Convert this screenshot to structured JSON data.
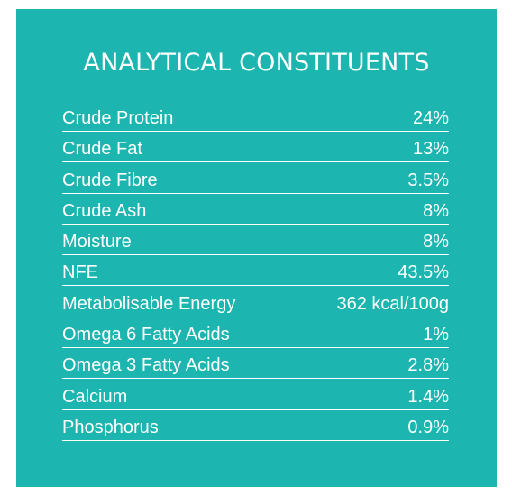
{
  "title": "ANALYTICAL CONSTITUENTS",
  "colors": {
    "panel_background": "#1cb5b0",
    "text": "#ffffff",
    "page_background": "#ffffff"
  },
  "rows": [
    {
      "label": "Crude Protein",
      "value": "24%"
    },
    {
      "label": "Crude Fat",
      "value": "13%"
    },
    {
      "label": "Crude Fibre",
      "value": "3.5%"
    },
    {
      "label": "Crude Ash",
      "value": "8%"
    },
    {
      "label": "Moisture",
      "value": "8%"
    },
    {
      "label": "NFE",
      "value": "43.5%"
    },
    {
      "label": "Metabolisable Energy",
      "value": "362 kcal/100g"
    },
    {
      "label": "Omega 6 Fatty Acids",
      "value": "1%"
    },
    {
      "label": "Omega 3 Fatty Acids",
      "value": "2.8%"
    },
    {
      "label": "Calcium",
      "value": "1.4%"
    },
    {
      "label": "Phosphorus",
      "value": "0.9%"
    }
  ]
}
